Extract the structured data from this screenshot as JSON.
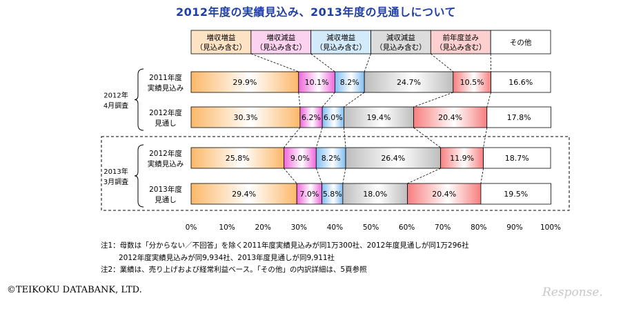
{
  "chart_data": {
    "type": "bar",
    "orientation": "horizontal",
    "stacked": "percent",
    "title": "2012年度の実績見込み、2013年度の見通しについて",
    "legend": [
      {
        "name": "増収増益",
        "sub": "（見込み含む）",
        "color": "#fde3c4"
      },
      {
        "name": "増収減益",
        "sub": "（見込み含む）",
        "color": "#fbd2ef"
      },
      {
        "name": "減収増益",
        "sub": "（見込み含む）",
        "color": "#d3eafb"
      },
      {
        "name": "減収減益",
        "sub": "（見込み含む）",
        "color": "#dcdcdc"
      },
      {
        "name": "前年度並み",
        "sub": "（見込み含む）",
        "color": "#fdd0d0"
      },
      {
        "name": "その他",
        "sub": "",
        "color": "#ffffff"
      }
    ],
    "series_colors": [
      "#fbb869",
      "#ee66da",
      "#80bdf0",
      "#bdbdbd",
      "#f77f7f",
      "#ffffff"
    ],
    "groups": [
      {
        "label_line1": "2012年",
        "label_line2": "4月調査",
        "highlighted": false
      },
      {
        "label_line1": "2013年",
        "label_line2": "3月調査",
        "highlighted": true
      }
    ],
    "rows": [
      {
        "group": 0,
        "label_line1": "2011年度",
        "label_line2": "実績見込み",
        "values": [
          29.9,
          10.1,
          8.2,
          24.7,
          10.5,
          16.6
        ],
        "labels": [
          "29.9%",
          "10.1%",
          "8.2%",
          "24.7%",
          "10.5%",
          "16.6%"
        ]
      },
      {
        "group": 0,
        "label_line1": "2012年度",
        "label_line2": "見通し",
        "values": [
          30.3,
          6.2,
          6.0,
          19.4,
          20.4,
          17.8
        ],
        "labels": [
          "30.3%",
          "6.2%",
          "6.0%",
          "19.4%",
          "20.4%",
          "17.8%"
        ]
      },
      {
        "group": 1,
        "label_line1": "2012年度",
        "label_line2": "実績見込み",
        "values": [
          25.8,
          9.0,
          8.2,
          26.4,
          11.9,
          18.7
        ],
        "labels": [
          "25.8%",
          "9.0%",
          "8.2%",
          "26.4%",
          "11.9%",
          "18.7%"
        ]
      },
      {
        "group": 1,
        "label_line1": "2013年度",
        "label_line2": "見通し",
        "values": [
          29.4,
          7.0,
          5.8,
          18.0,
          20.4,
          19.5
        ],
        "labels": [
          "29.4%",
          "7.0%",
          "5.8%",
          "18.0%",
          "20.4%",
          "19.5%"
        ]
      }
    ],
    "xlim": [
      0,
      100
    ],
    "x_ticks": [
      "0%",
      "10%",
      "20%",
      "30%",
      "40%",
      "50%",
      "60%",
      "70%",
      "80%",
      "90%",
      "100%"
    ]
  },
  "notes": {
    "line1": "注1：母数は「分からない／不回答」を除く2011年度実績見込みが同1万300社、2012年度見通しが同1万296社",
    "line2": "2012年度実績見込みが同9,934社、2013年度見通しが同9,911社",
    "line3": "注2：業績は、売り上げおよび経常利益ベース。「その他」の内訳詳細は、5頁参照"
  },
  "footer": {
    "copyright": "©TEIKOKU DATABANK, LTD.",
    "logo_text": "Response."
  }
}
